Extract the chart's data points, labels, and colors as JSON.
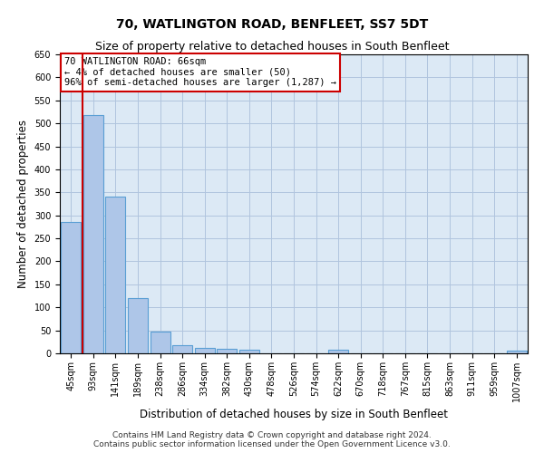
{
  "title": "70, WATLINGTON ROAD, BENFLEET, SS7 5DT",
  "subtitle": "Size of property relative to detached houses in South Benfleet",
  "xlabel": "Distribution of detached houses by size in South Benfleet",
  "ylabel": "Number of detached properties",
  "categories": [
    "45sqm",
    "93sqm",
    "141sqm",
    "189sqm",
    "238sqm",
    "286sqm",
    "334sqm",
    "382sqm",
    "430sqm",
    "478sqm",
    "526sqm",
    "574sqm",
    "622sqm",
    "670sqm",
    "718sqm",
    "767sqm",
    "815sqm",
    "863sqm",
    "911sqm",
    "959sqm",
    "1007sqm"
  ],
  "values": [
    285,
    518,
    340,
    120,
    48,
    17,
    12,
    10,
    8,
    0,
    0,
    0,
    8,
    0,
    0,
    0,
    0,
    0,
    0,
    0,
    6
  ],
  "bar_color": "#aec6e8",
  "bar_edge_color": "#5a9fd4",
  "bg_color": "#dce9f5",
  "grid_color": "#b0c4de",
  "annotation_box_text": "70 WATLINGTON ROAD: 66sqm\n← 4% of detached houses are smaller (50)\n96% of semi-detached houses are larger (1,287) →",
  "annotation_box_color": "#ffffff",
  "annotation_box_edge": "#cc0000",
  "vline_x_index": 0.5,
  "vline_color": "#cc0000",
  "ylim": [
    0,
    650
  ],
  "yticks": [
    0,
    50,
    100,
    150,
    200,
    250,
    300,
    350,
    400,
    450,
    500,
    550,
    600,
    650
  ],
  "footer": "Contains HM Land Registry data © Crown copyright and database right 2024.\nContains public sector information licensed under the Open Government Licence v3.0.",
  "title_fontsize": 10,
  "subtitle_fontsize": 9,
  "xlabel_fontsize": 8.5,
  "ylabel_fontsize": 8.5,
  "tick_fontsize": 7,
  "footer_fontsize": 6.5,
  "annot_fontsize": 7.5
}
